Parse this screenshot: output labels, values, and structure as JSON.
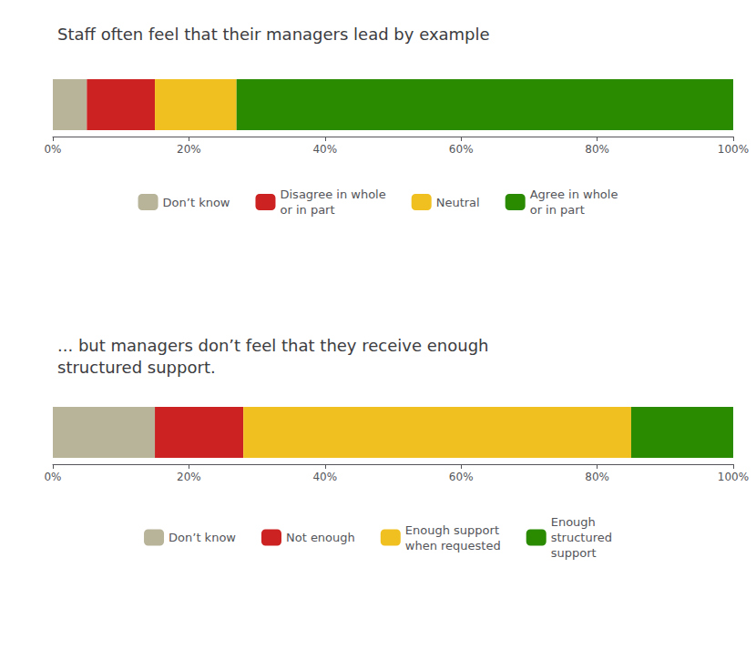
{
  "chart_data": [
    {
      "type": "bar",
      "orientation": "horizontal",
      "stacked": true,
      "title": "Staff often feel that their managers lead by example",
      "categories": [
        null
      ],
      "series": [
        {
          "name": "Don’t know",
          "color": "#b8b49a",
          "values": [
            5
          ]
        },
        {
          "name": "Disagree in whole\nor in part",
          "color": "#cc2222",
          "values": [
            10
          ]
        },
        {
          "name": "Neutral",
          "color": "#f0c020",
          "values": [
            12
          ]
        },
        {
          "name": "Agree in whole\nor in part",
          "color": "#2a8a00",
          "values": [
            73
          ]
        }
      ],
      "xlim": [
        0,
        100
      ],
      "xticks": [
        {
          "value": 0,
          "label": "0%"
        },
        {
          "value": 20,
          "label": "20%"
        },
        {
          "value": 40,
          "label": "40%"
        },
        {
          "value": 60,
          "label": "60%"
        },
        {
          "value": 80,
          "label": "80%"
        },
        {
          "value": 100,
          "label": "100%"
        }
      ],
      "grid": false,
      "legend": "bottom",
      "tick_labels": "x"
    },
    {
      "type": "bar",
      "orientation": "horizontal",
      "stacked": true,
      "title": "... but managers don’t feel that they receive enough\nstructured support.",
      "categories": [
        null
      ],
      "series": [
        {
          "name": "Don’t know",
          "color": "#b8b49a",
          "values": [
            15
          ]
        },
        {
          "name": "Not enough",
          "color": "#cc2222",
          "values": [
            13
          ]
        },
        {
          "name": "Enough support\nwhen requested",
          "color": "#f0c020",
          "values": [
            57
          ]
        },
        {
          "name": "Enough\nstructured\nsupport",
          "color": "#2a8a00",
          "values": [
            15
          ]
        }
      ],
      "xlim": [
        0,
        100
      ],
      "xticks": [
        {
          "value": 0,
          "label": "0%"
        },
        {
          "value": 20,
          "label": "20%"
        },
        {
          "value": 40,
          "label": "40%"
        },
        {
          "value": 60,
          "label": "60%"
        },
        {
          "value": 80,
          "label": "80%"
        },
        {
          "value": 100,
          "label": "100%"
        }
      ],
      "grid": false,
      "legend": "bottom",
      "tick_labels": "x"
    }
  ]
}
